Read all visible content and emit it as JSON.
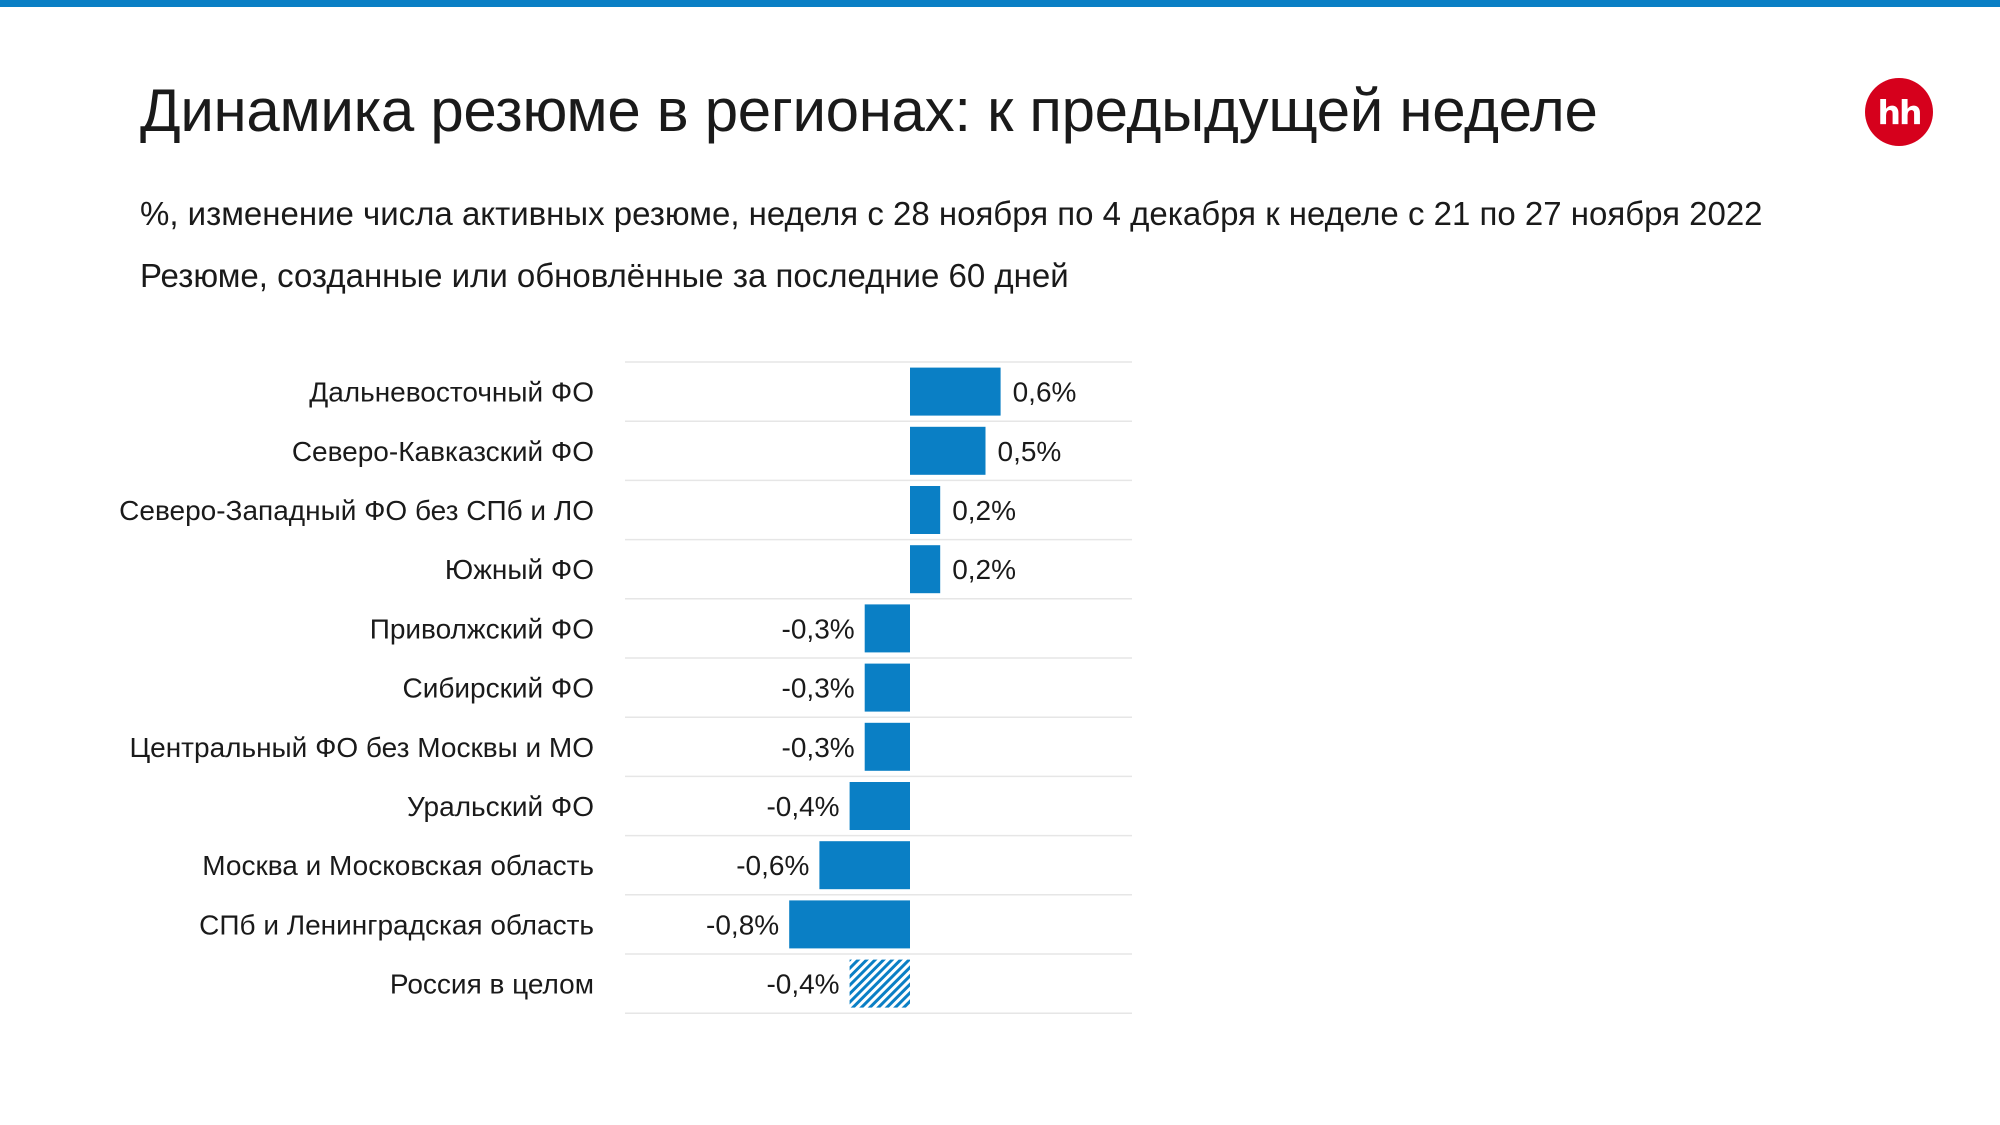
{
  "header": {
    "title": "Динамика резюме в регионах: к предыдущей неделе",
    "subtitle_1": "%, изменение числа активных резюме, неделя с 28 ноября по 4 декабря к неделе с 21 по 27 ноября 2022",
    "subtitle_2": "Резюме, созданные или обновлённые за последние 60 дней",
    "logo_text": "hh"
  },
  "colors": {
    "accent": "#0a7fc5",
    "bar": "#0a7fc5",
    "logo": "#d6001c",
    "grid": "#e6e6e6"
  },
  "chart_data": {
    "type": "bar",
    "orientation": "horizontal",
    "categories": [
      "Дальневосточный ФО",
      "Северо-Кавказский ФО",
      "Северо-Западный ФО без СПб и ЛО",
      "Южный ФО",
      "Приволжский ФО",
      "Сибирский ФО",
      "Центральный ФО без Москвы и МО",
      "Уральский ФО",
      "Москва и Московская область",
      "СПб и Ленинградская область",
      "Россия в целом"
    ],
    "values": [
      0.6,
      0.5,
      0.2,
      0.2,
      -0.3,
      -0.3,
      -0.3,
      -0.4,
      -0.6,
      -0.8,
      -0.4
    ],
    "labels": [
      "0,6%",
      "0,5%",
      "0,2%",
      "0,2%",
      "-0,3%",
      "-0,3%",
      "-0,3%",
      "-0,4%",
      "-0,6%",
      "-0,8%",
      "-0,4%"
    ],
    "highlight": [
      "Россия в целом"
    ],
    "highlight_style": "hatched",
    "xlim": [
      -1.0,
      0.8
    ],
    "grid": "horizontal row separators",
    "legend": "none",
    "title": "",
    "xlabel": "",
    "ylabel": ""
  }
}
